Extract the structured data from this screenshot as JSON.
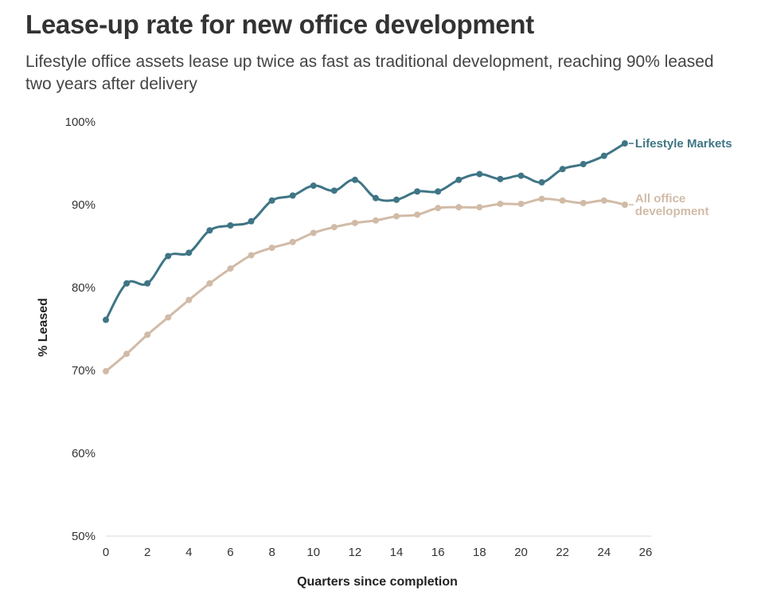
{
  "chart_data": {
    "type": "line",
    "title": "Lease-up rate for new office development",
    "subtitle": "Lifestyle office assets lease up twice as fast as traditional development, reaching 90% leased two years after delivery",
    "xlabel": "Quarters since completion",
    "ylabel": "% Leased",
    "xlim": [
      0,
      26
    ],
    "ylim": [
      50,
      100
    ],
    "x_ticks": [
      0,
      2,
      4,
      6,
      8,
      10,
      12,
      14,
      16,
      18,
      20,
      22,
      24,
      26
    ],
    "y_ticks": [
      50,
      60,
      70,
      80,
      90,
      100
    ],
    "y_tick_labels": [
      "50%",
      "60%",
      "70%",
      "80%",
      "90%",
      "100%"
    ],
    "grid": false,
    "legend": "direct labels at line ends",
    "x": [
      0,
      1,
      2,
      3,
      4,
      5,
      6,
      7,
      8,
      9,
      10,
      11,
      12,
      13,
      14,
      15,
      16,
      17,
      18,
      19,
      20,
      21,
      22,
      23,
      24,
      25
    ],
    "series": [
      {
        "name": "Lifestyle Markets",
        "label_lines": [
          "Lifestyle Markets"
        ],
        "color": "#3f7585",
        "values": [
          76.1,
          80.5,
          80.5,
          83.8,
          84.2,
          86.9,
          87.5,
          88.0,
          90.5,
          91.1,
          92.3,
          91.7,
          93.0,
          90.8,
          90.6,
          91.6,
          91.6,
          93.0,
          93.7,
          93.1,
          93.5,
          92.7,
          94.3,
          94.9,
          95.9,
          97.4
        ]
      },
      {
        "name": "All office development",
        "label_lines": [
          "All office",
          "development"
        ],
        "color": "#d1bba7",
        "values": [
          69.9,
          72.0,
          74.3,
          76.4,
          78.5,
          80.5,
          82.3,
          83.9,
          84.8,
          85.5,
          86.6,
          87.3,
          87.8,
          88.1,
          88.6,
          88.8,
          89.6,
          89.7,
          89.7,
          90.1,
          90.1,
          90.7,
          90.5,
          90.2,
          90.5,
          90.0
        ]
      }
    ]
  }
}
